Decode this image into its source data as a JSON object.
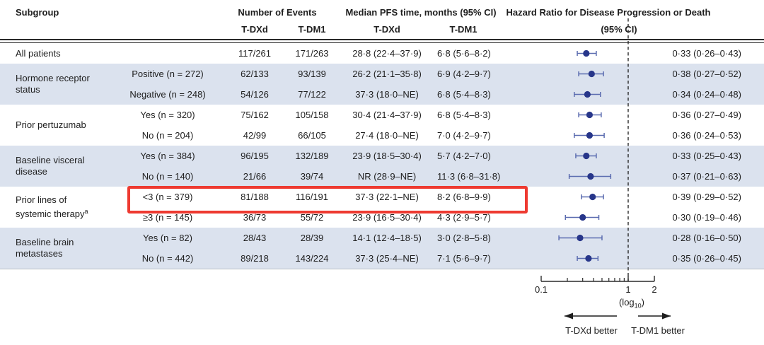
{
  "header": {
    "subgroup": "Subgroup",
    "events": {
      "title": "Number of Events",
      "col1": "T-DXd",
      "col2": "T-DM1"
    },
    "pfs": {
      "title": "Median PFS time, months (95% CI)",
      "col1": "T-DXd",
      "col2": "T-DM1"
    },
    "hr": {
      "line1": "Hazard Ratio for Disease Progression or Death",
      "line2": "(95% CI)"
    }
  },
  "axis": {
    "tick_labels": [
      "0.1",
      "1",
      "2"
    ],
    "tick_values": [
      0.1,
      1,
      2
    ],
    "minor_ticks": [
      0.2,
      0.3,
      0.4,
      0.5,
      0.6,
      0.7,
      0.8,
      0.9
    ],
    "scale_label_parts": {
      "pre": "(log",
      "sub": "10",
      "post": ")"
    },
    "reference_value": 1
  },
  "footer": {
    "left_arrow_label": "T-DXd better",
    "right_arrow_label": "T-DM1 better"
  },
  "colors": {
    "band": "#dbe2ee",
    "dot": "#27368a",
    "whisker": "#5b6cb0",
    "highlight_box": "#ee3a31",
    "text": "#1e1e1e",
    "rule": "#2a2a2a"
  },
  "chart_data": {
    "type": "forest",
    "title": "Hazard Ratio for Disease Progression or Death (95% CI)",
    "x_scale": "log10",
    "xlim": [
      0.1,
      2
    ],
    "reference_line": 1,
    "groups": [
      {
        "lines": [
          "All patients"
        ],
        "sup": "",
        "row_start": 0,
        "row_count": 1,
        "shaded": false
      },
      {
        "lines": [
          "Hormone receptor",
          "status"
        ],
        "sup": "",
        "row_start": 1,
        "row_count": 2,
        "shaded": true
      },
      {
        "lines": [
          "Prior pertuzumab"
        ],
        "sup": "",
        "row_start": 3,
        "row_count": 2,
        "shaded": false
      },
      {
        "lines": [
          "Baseline visceral",
          "disease"
        ],
        "sup": "",
        "row_start": 5,
        "row_count": 2,
        "shaded": true
      },
      {
        "lines": [
          "Prior lines of",
          "systemic therapy"
        ],
        "sup": "a",
        "row_start": 7,
        "row_count": 2,
        "shaded": false
      },
      {
        "lines": [
          "Baseline brain",
          "metastases"
        ],
        "sup": "",
        "row_start": 9,
        "row_count": 2,
        "shaded": true
      }
    ],
    "rows": [
      {
        "subgroup": "",
        "events_tdxd": "117/261",
        "events_tdm1": "171/263",
        "pfs_tdxd": "28·8 (22·4–37·9)",
        "pfs_tdm1": "6·8 (5·6–8·2)",
        "hr_text": "0·33 (0·26–0·43)",
        "hr": 0.33,
        "ci_low": 0.26,
        "ci_high": 0.43,
        "shaded": false,
        "highlighted": false
      },
      {
        "subgroup": "Positive (n = 272)",
        "events_tdxd": "62/133",
        "events_tdm1": "93/139",
        "pfs_tdxd": "26·2 (21·1–35·8)",
        "pfs_tdm1": "6·9 (4·2–9·7)",
        "hr_text": "0·38 (0·27–0·52)",
        "hr": 0.38,
        "ci_low": 0.27,
        "ci_high": 0.52,
        "shaded": true,
        "highlighted": false
      },
      {
        "subgroup": "Negative (n = 248)",
        "events_tdxd": "54/126",
        "events_tdm1": "77/122",
        "pfs_tdxd": "37·3 (18·0–NE)",
        "pfs_tdm1": "6·8 (5·4–8·3)",
        "hr_text": "0·34 (0·24–0·48)",
        "hr": 0.34,
        "ci_low": 0.24,
        "ci_high": 0.48,
        "shaded": true,
        "highlighted": false
      },
      {
        "subgroup": "Yes (n = 320)",
        "events_tdxd": "75/162",
        "events_tdm1": "105/158",
        "pfs_tdxd": "30·4 (21·4–37·9)",
        "pfs_tdm1": "6·8 (5·4–8·3)",
        "hr_text": "0·36 (0·27–0·49)",
        "hr": 0.36,
        "ci_low": 0.27,
        "ci_high": 0.49,
        "shaded": false,
        "highlighted": false
      },
      {
        "subgroup": "No (n = 204)",
        "events_tdxd": "42/99",
        "events_tdm1": "66/105",
        "pfs_tdxd": "27·4 (18·0–NE)",
        "pfs_tdm1": "7·0 (4·2–9·7)",
        "hr_text": "0·36 (0·24–0·53)",
        "hr": 0.36,
        "ci_low": 0.24,
        "ci_high": 0.53,
        "shaded": false,
        "highlighted": false
      },
      {
        "subgroup": "Yes (n = 384)",
        "events_tdxd": "96/195",
        "events_tdm1": "132/189",
        "pfs_tdxd": "23·9 (18·5–30·4)",
        "pfs_tdm1": "5·7 (4·2–7·0)",
        "hr_text": "0·33 (0·25–0·43)",
        "hr": 0.33,
        "ci_low": 0.25,
        "ci_high": 0.43,
        "shaded": true,
        "highlighted": false
      },
      {
        "subgroup": "No (n = 140)",
        "events_tdxd": "21/66",
        "events_tdm1": "39/74",
        "pfs_tdxd": "NR (28·9–NE)",
        "pfs_tdm1": "11·3 (6·8–31·8)",
        "hr_text": "0·37 (0·21–0·63)",
        "hr": 0.37,
        "ci_low": 0.21,
        "ci_high": 0.63,
        "shaded": true,
        "highlighted": false
      },
      {
        "subgroup": "<3 (n = 379)",
        "events_tdxd": "81/188",
        "events_tdm1": "116/191",
        "pfs_tdxd": "37·3 (22·1–NE)",
        "pfs_tdm1": "8·2 (6·8–9·9)",
        "hr_text": "0·39 (0·29–0·52)",
        "hr": 0.39,
        "ci_low": 0.29,
        "ci_high": 0.52,
        "shaded": false,
        "highlighted": true
      },
      {
        "subgroup": "≥3 (n = 145)",
        "events_tdxd": "36/73",
        "events_tdm1": "55/72",
        "pfs_tdxd": "23·9 (16·5–30·4)",
        "pfs_tdm1": "4·3 (2·9–5·7)",
        "hr_text": "0·30 (0·19–0·46)",
        "hr": 0.3,
        "ci_low": 0.19,
        "ci_high": 0.46,
        "shaded": false,
        "highlighted": false
      },
      {
        "subgroup": "Yes (n = 82)",
        "events_tdxd": "28/43",
        "events_tdm1": "28/39",
        "pfs_tdxd": "14·1 (12·4–18·5)",
        "pfs_tdm1": "3·0 (2·8–5·8)",
        "hr_text": "0·28 (0·16–0·50)",
        "hr": 0.28,
        "ci_low": 0.16,
        "ci_high": 0.5,
        "shaded": true,
        "highlighted": false
      },
      {
        "subgroup": "No (n = 442)",
        "events_tdxd": "89/218",
        "events_tdm1": "143/224",
        "pfs_tdxd": "37·3 (25·4–NE)",
        "pfs_tdm1": "7·1 (5·6–9·7)",
        "hr_text": "0·35 (0·26–0·45)",
        "hr": 0.35,
        "ci_low": 0.26,
        "ci_high": 0.45,
        "shaded": true,
        "highlighted": false
      }
    ]
  }
}
